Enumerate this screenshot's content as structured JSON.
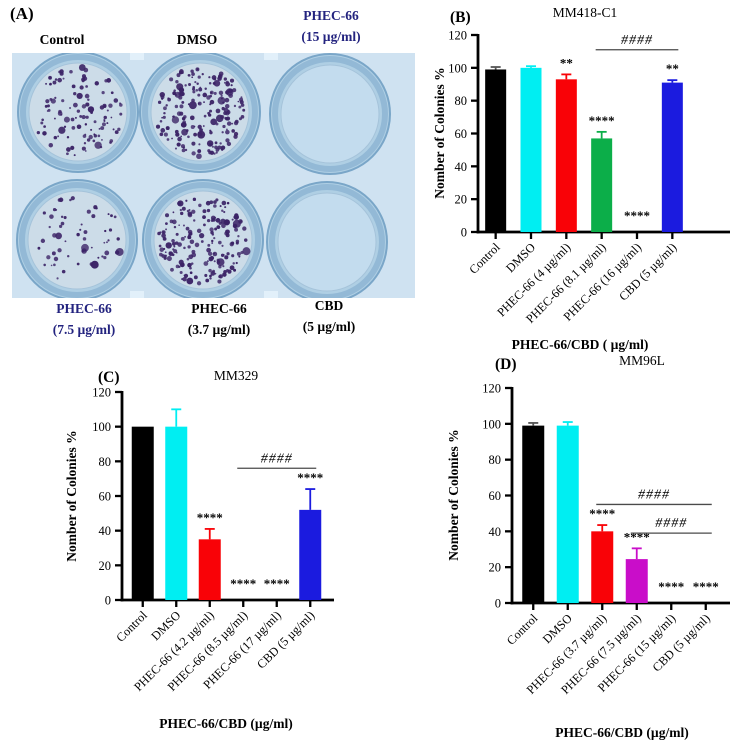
{
  "panel_a": {
    "tag": "(A)",
    "labels": {
      "control": "Control",
      "dmso": "DMSO",
      "phec15_l1": "PHEC-66",
      "phec15_l2": "(15 µg/ml)",
      "phec75_l1": "PHEC-66",
      "phec75_l2": "(7.5 µg/ml)",
      "phec37_l1": "PHEC-66",
      "phec37_l2": "(3.7 µg/ml)",
      "cbd_l1": "CBD",
      "cbd_l2": "(5 µg/ml)"
    },
    "label_color_navy": "#23237f",
    "label_color_black": "#000000",
    "photo": {
      "background": "#cfe2f1",
      "well_rim": "#7aa6c8",
      "well_ring": "#93b9d6",
      "well_interior_colonies": "#ccdce8",
      "well_interior_empty": "#c3dcee",
      "colony_color": "#3b2366",
      "wells": [
        {
          "name": "control",
          "row": 0,
          "col": 0,
          "colonies": 115
        },
        {
          "name": "dmso",
          "row": 0,
          "col": 1,
          "colonies": 200
        },
        {
          "name": "phec-66-15",
          "row": 0,
          "col": 2,
          "colonies": 0
        },
        {
          "name": "phec-66-7-5",
          "row": 1,
          "col": 0,
          "colonies": 60
        },
        {
          "name": "phec-66-3-7",
          "row": 1,
          "col": 1,
          "colonies": 185
        },
        {
          "name": "cbd-5",
          "row": 1,
          "col": 2,
          "colonies": 0
        }
      ]
    }
  },
  "chart_data": [
    {
      "id": "B",
      "type": "bar",
      "panel_tag": "(B)",
      "title": "MM418-C1",
      "ylabel": "Nomber of Colonies %",
      "xlabel": "PHEC-66/CBD ( µg/ml)",
      "ylim": [
        0,
        120
      ],
      "yticks": [
        0,
        20,
        40,
        60,
        80,
        100,
        120
      ],
      "grid": false,
      "legend": "none",
      "categories": [
        "Control",
        "DMSO",
        "PHEC-66 (4 µg/ml)",
        "PHEC-66 (8.1 µg/ml)",
        "PHEC-66 (16 µg/ml)",
        "CBD (5 µg/ml)"
      ],
      "values": [
        99,
        100,
        93,
        57,
        0,
        91
      ],
      "errors": [
        1.5,
        1,
        3,
        4,
        0,
        1.5
      ],
      "bar_colors": [
        "#000000",
        "#00eef2",
        "#f90207",
        "#0cae49",
        "#000000",
        "#1b1bdf"
      ],
      "significance": [
        "",
        "",
        "**",
        "****",
        "****",
        "**"
      ],
      "comparisons": [
        {
          "from_index": 3,
          "to_index": 5,
          "y": 111,
          "label": "####"
        }
      ]
    },
    {
      "id": "C",
      "type": "bar",
      "panel_tag": "(C)",
      "title": "MM329",
      "ylabel": "Nomber of Colonies %",
      "xlabel": "PHEC-66/CBD (µg/ml)",
      "ylim": [
        0,
        120
      ],
      "yticks": [
        0,
        20,
        40,
        60,
        80,
        100,
        120
      ],
      "grid": false,
      "legend": "none",
      "categories": [
        "Control",
        "DMSO",
        "PHEC-66 (4.2 µg/ml)",
        "PHEC-66 (8.5 µg/ml)",
        "PHEC-66 (17 µg/ml)",
        "CBD (5 µg/ml)"
      ],
      "values": [
        100,
        100,
        35,
        0,
        0,
        52
      ],
      "errors": [
        0,
        10,
        6,
        0,
        0,
        12
      ],
      "bar_colors": [
        "#000000",
        "#00eef2",
        "#f90207",
        "#000000",
        "#000000",
        "#1b1bdf"
      ],
      "significance": [
        "",
        "",
        "****",
        "****",
        "****",
        "****"
      ],
      "comparisons": [
        {
          "from_index": 3,
          "to_index": 5,
          "y": 76,
          "label": "####"
        }
      ]
    },
    {
      "id": "D",
      "type": "bar",
      "panel_tag": "(D)",
      "title": "MM96L",
      "ylabel": "Nomber of Colonies %",
      "xlabel": "PHEC-66/CBD (µg/ml)",
      "ylim": [
        0,
        120
      ],
      "yticks": [
        0,
        20,
        40,
        60,
        80,
        100,
        120
      ],
      "grid": false,
      "legend": "none",
      "categories": [
        "Control",
        "DMSO",
        "PHEC-66 (3.7 µg/ml)",
        "PHEC-66 (7.5 µg/ml)",
        "PHEC-66 (15 µg/ml)",
        "CBD (5 µg/ml)"
      ],
      "values": [
        99,
        99,
        40,
        24.5,
        0,
        0
      ],
      "errors": [
        1.5,
        2,
        3.5,
        6,
        0,
        0
      ],
      "bar_colors": [
        "#000000",
        "#00eef2",
        "#f90207",
        "#c90dc9",
        "#000000",
        "#000000"
      ],
      "significance": [
        "",
        "",
        "****",
        "****",
        "****",
        "****"
      ],
      "comparisons": [
        {
          "from_index": 2,
          "to_index": 5,
          "y": 55,
          "label": "####"
        },
        {
          "from_index": 3,
          "to_index": 5,
          "y": 39,
          "label": "####"
        }
      ]
    }
  ]
}
